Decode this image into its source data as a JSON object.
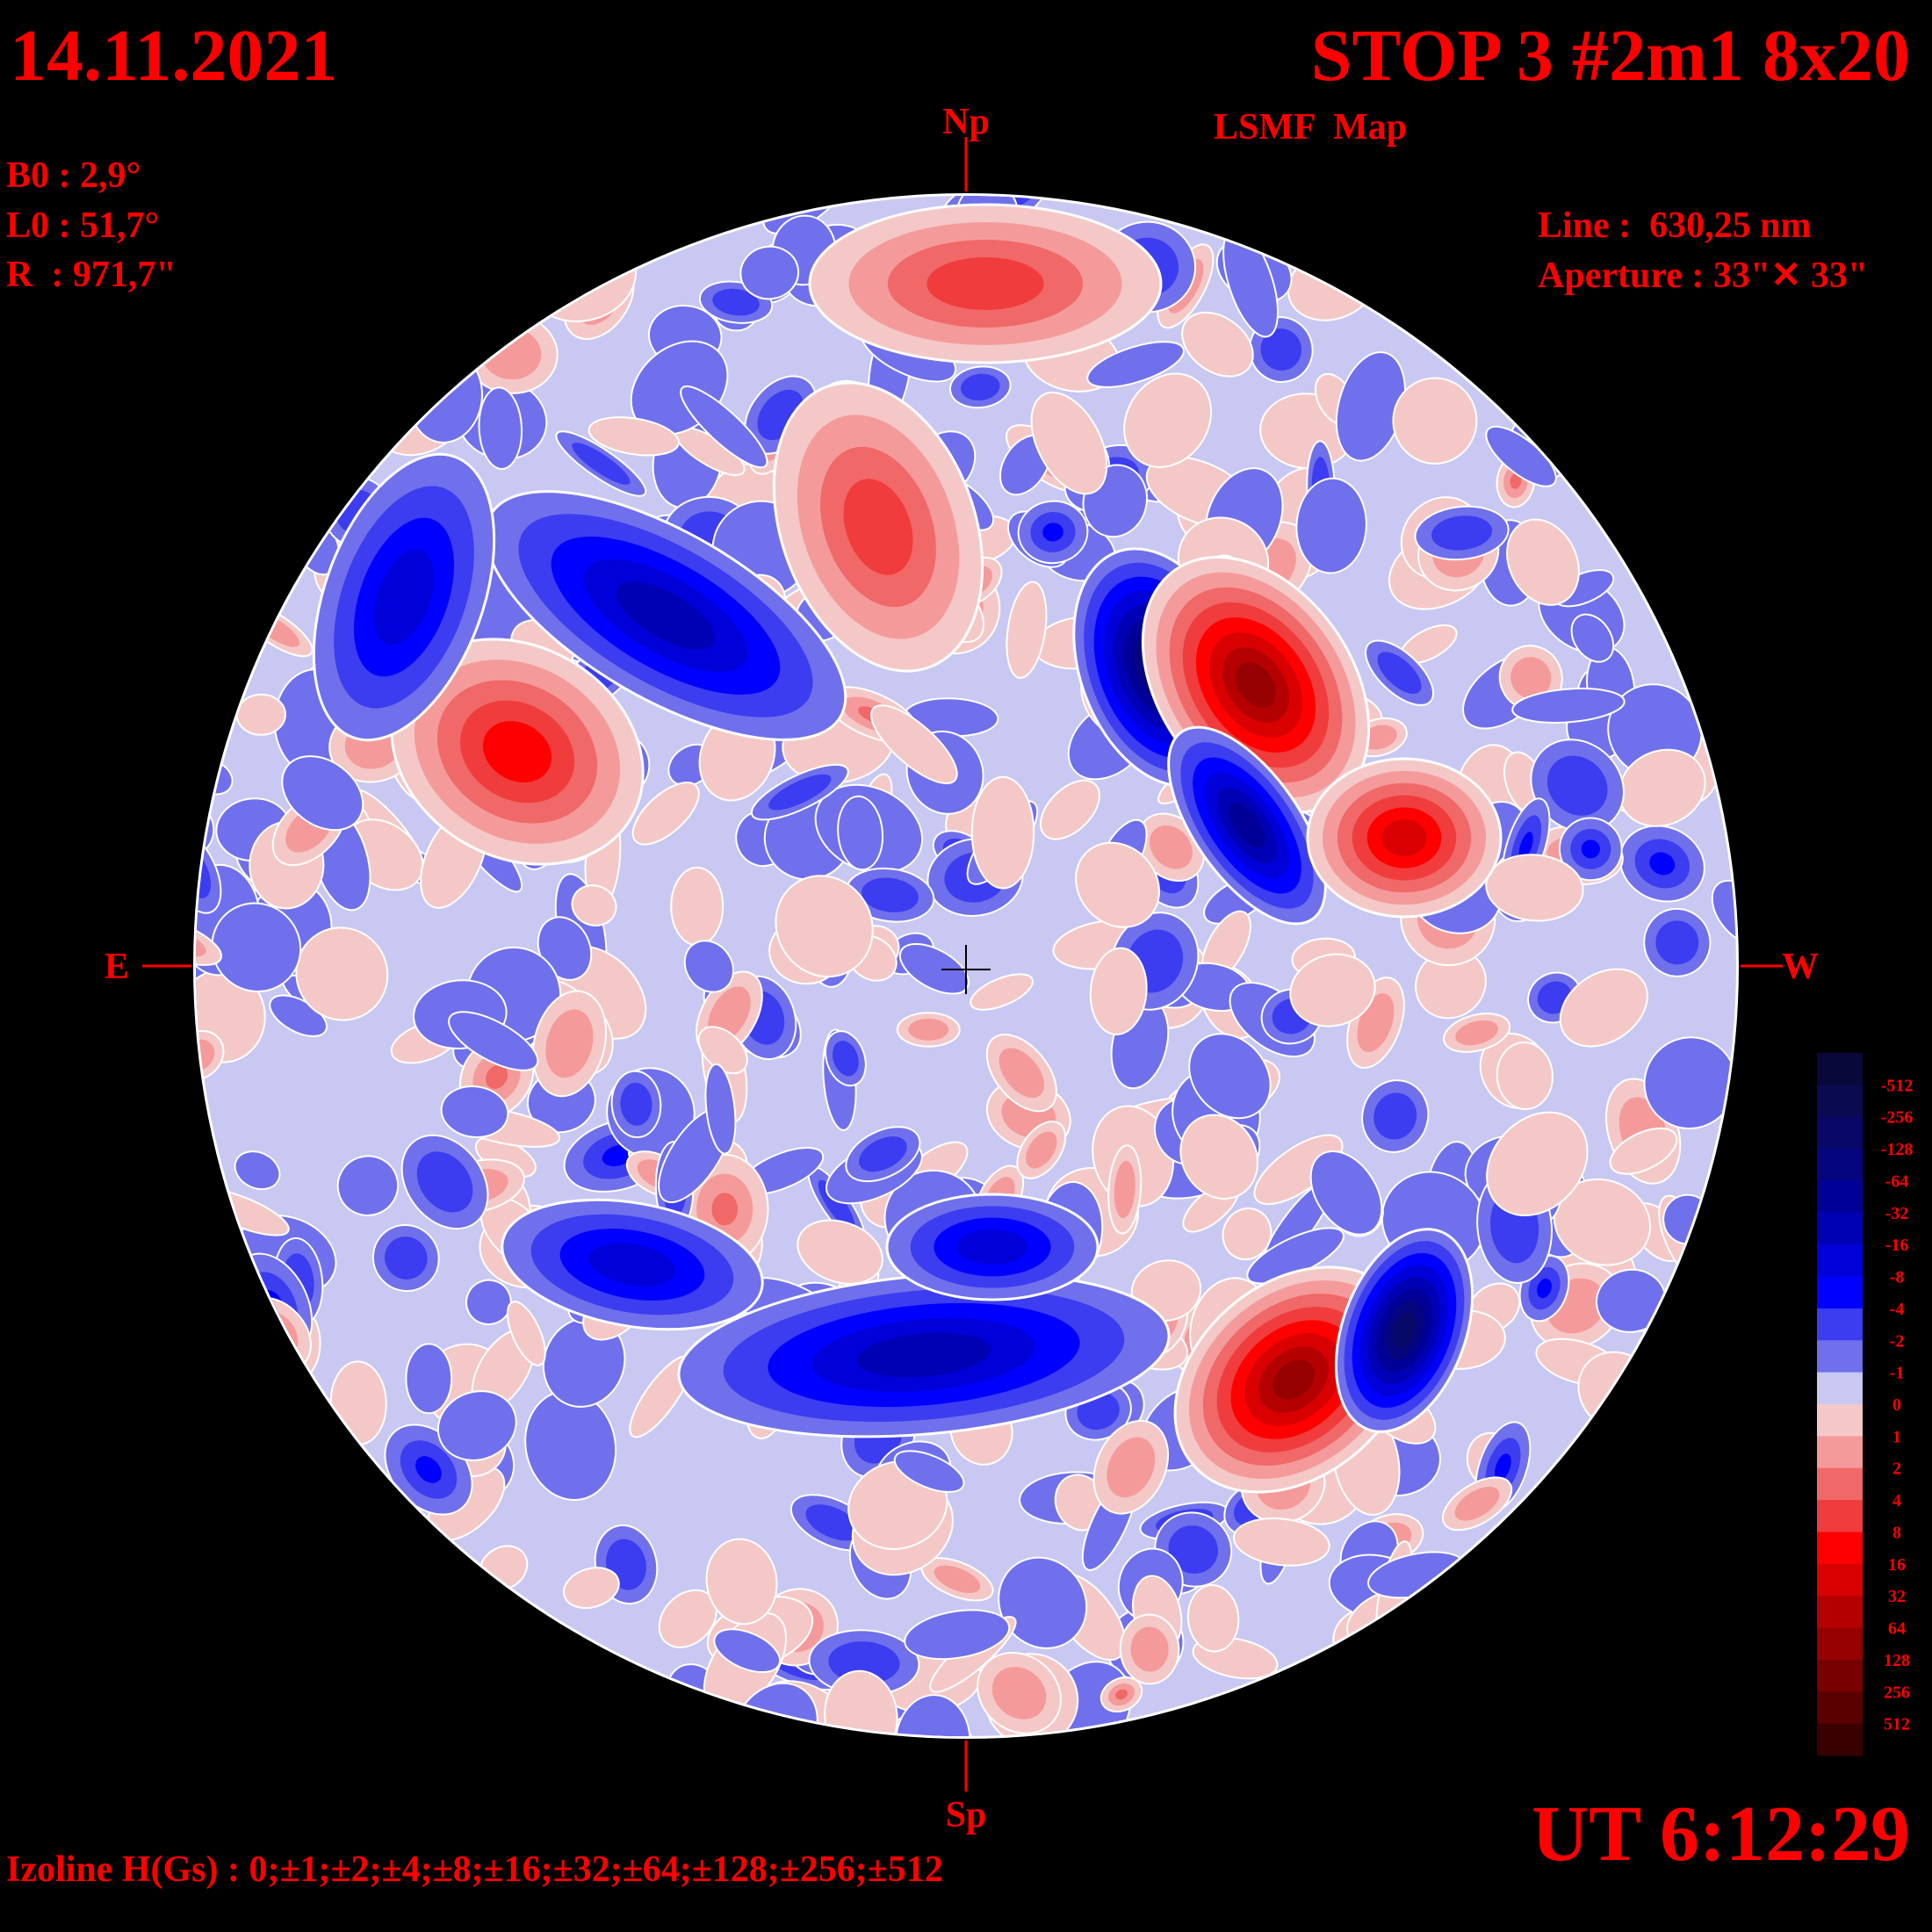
{
  "header": {
    "date": "14.11.2021",
    "title": "STOP 3 #2m1 8x20",
    "subtitle": "LSMF  Map"
  },
  "parameters": [
    "B0 : 2,9°",
    "L0 : 51,7°",
    "R  : 971,7\""
  ],
  "instrument": [
    "Line :  630,25 nm",
    "Aperture : 33\"✕ 33\""
  ],
  "directions": {
    "north": "Np",
    "south": "Sp",
    "east": "E",
    "west": "W"
  },
  "time": "UT 6:12:29",
  "izoline": "Izoline H(Gs) : 0;±1;±2;±4;±8;±16;±32;±64;±128;±256;±512",
  "colorbar": {
    "labels": [
      "-512",
      "-256",
      "-128",
      "-64",
      "-32",
      "-16",
      "-8",
      "-4",
      "-2",
      "-1",
      "0",
      "1",
      "2",
      "4",
      "8",
      "16",
      "32",
      "64",
      "128",
      "256",
      "512"
    ],
    "colors": [
      "#08083a",
      "#0a0a50",
      "#080868",
      "#050580",
      "#000098",
      "#0000b4",
      "#0000d8",
      "#0000ff",
      "#3c3cf0",
      "#7070ec",
      "#c8c8f2",
      "#f5c8c8",
      "#f59a9a",
      "#f06868",
      "#f03c3c",
      "#ff0000",
      "#d80000",
      "#b40000",
      "#960000",
      "#780000",
      "#5a0000",
      "#3a0000"
    ]
  }
}
